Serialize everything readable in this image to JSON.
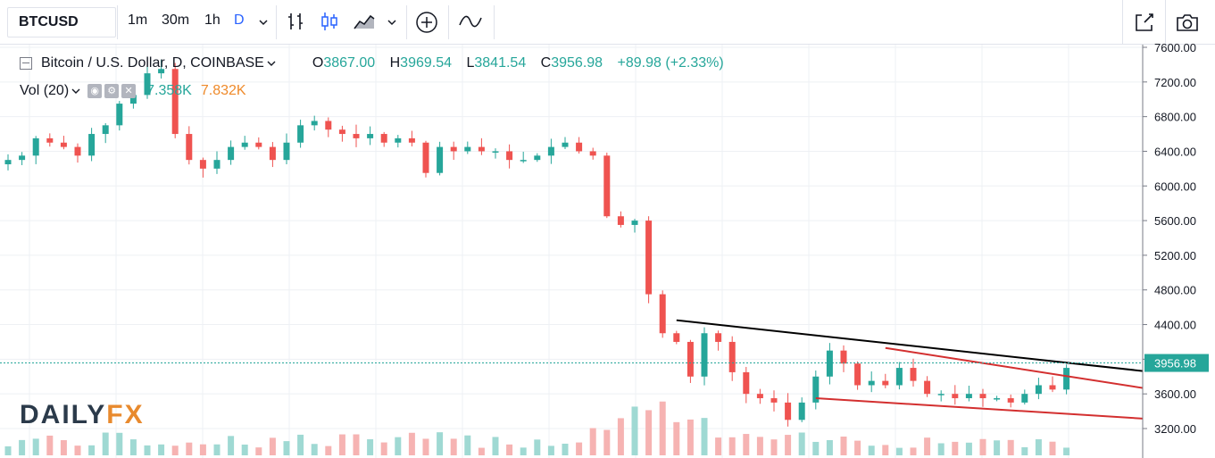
{
  "toolbar": {
    "symbol": "BTCUSD",
    "intervals": [
      "1m",
      "30m",
      "1h",
      "D"
    ],
    "active_interval": "D",
    "icons": [
      "chevron-down-icon",
      "bar-style-icon",
      "candle-style-icon",
      "area-style-icon",
      "chevron-down-icon",
      "add-compare-icon",
      "indicators-icon",
      "snapshot-expand-icon",
      "camera-icon"
    ]
  },
  "legend": {
    "title": "Bitcoin / U.S. Dollar, D, COINBASE",
    "o_label": "O",
    "o_value": "3867.00",
    "h_label": "H",
    "h_value": "3969.54",
    "l_label": "L",
    "l_value": "3841.54",
    "c_label": "C",
    "c_value": "3956.98",
    "change": "+89.98 (+2.33%)"
  },
  "volume_legend": {
    "label": "Vol (20)",
    "value1": "7.358K",
    "value2": "7.832K"
  },
  "logo": {
    "part1": "DAILY",
    "part2": "FX"
  },
  "colors": {
    "up": "#26a69a",
    "down": "#ef5350",
    "up_vol": "#9fd9d3",
    "down_vol": "#f6b3b2",
    "trendline_black": "#000000",
    "trendline_red": "#d32f2f",
    "last_price_bg": "#26a69a"
  },
  "chart_data": {
    "type": "candlestick",
    "y_axis": {
      "ticks": [
        "7600.00",
        "7200.00",
        "6800.00",
        "6400.00",
        "6000.00",
        "5600.00",
        "5200.00",
        "4800.00",
        "4400.00",
        "4000.00",
        "3600.00",
        "3200.00"
      ],
      "tick_values": [
        7600,
        7200,
        6800,
        6400,
        6000,
        5600,
        5200,
        4800,
        4400,
        4000,
        3600,
        3200
      ],
      "range": [
        3050,
        7650
      ],
      "last_price_label": "3956.98",
      "last_price": 3956.98
    },
    "approx_closes": [
      6300,
      6350,
      6550,
      6500,
      6450,
      6350,
      6600,
      6700,
      6950,
      7050,
      7300,
      7350,
      6600,
      6300,
      6200,
      6300,
      6450,
      6500,
      6450,
      6300,
      6500,
      6700,
      6750,
      6650,
      6600,
      6550,
      6600,
      6500,
      6550,
      6500,
      6150,
      6450,
      6400,
      6450,
      6400,
      6400,
      6300,
      6300,
      6350,
      6450,
      6500,
      6400,
      6350,
      5650,
      5550,
      5600,
      4750,
      4300,
      4200,
      3800,
      4300,
      4200,
      3850,
      3600,
      3550,
      3500,
      3300,
      3500,
      3800,
      4100,
      3950,
      3700,
      3750,
      3700,
      3900,
      3750,
      3600,
      3600,
      3550,
      3600,
      3550,
      3550,
      3500,
      3600,
      3700,
      3650,
      3900
    ]
  },
  "trendlines": [
    {
      "name": "upper-black",
      "from": {
        "bar": 48,
        "price": 4450
      },
      "to": {
        "bar": 88,
        "price": 3750
      }
    },
    {
      "name": "wedge-top-red",
      "from": {
        "bar": 63,
        "price": 4130
      },
      "to": {
        "bar": 87,
        "price": 3530
      }
    },
    {
      "name": "wedge-bottom-red",
      "from": {
        "bar": 58,
        "price": 3550
      },
      "to": {
        "bar": 84,
        "price": 3290
      }
    }
  ]
}
